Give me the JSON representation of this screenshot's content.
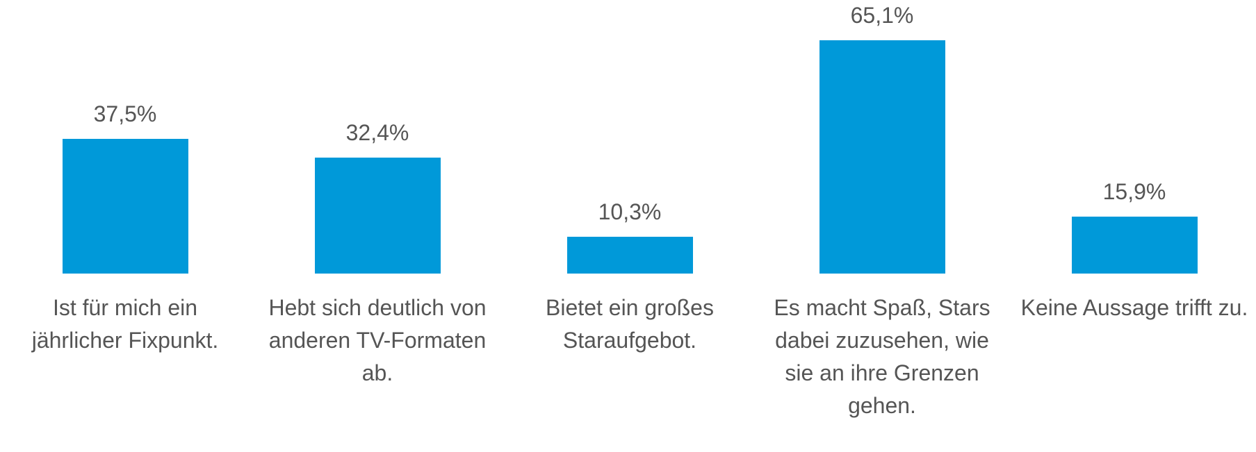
{
  "chart_data": {
    "type": "bar",
    "categories": [
      "Ist für mich ein jährlicher Fixpunkt.",
      "Hebt sich deutlich von anderen TV-Formaten ab.",
      "Bietet ein großes Staraufgebot.",
      "Es macht Spaß, Stars dabei zuzusehen, wie sie an ihre Grenzen gehen.",
      "Keine Aussage trifft zu."
    ],
    "values": [
      37.5,
      32.4,
      10.3,
      65.1,
      15.9
    ],
    "value_labels": [
      "37,5%",
      "32,4%",
      "10,3%",
      "65,1%",
      "15,9%"
    ],
    "color": "#0099d9"
  }
}
